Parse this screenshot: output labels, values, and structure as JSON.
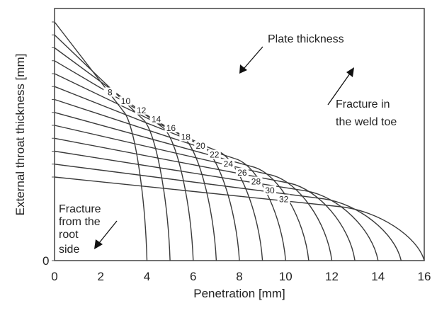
{
  "chart_data": {
    "type": "line",
    "title": "",
    "xlabel": "Penetration [mm]",
    "ylabel": "External throat thickness [mm]",
    "xlim": [
      0,
      16
    ],
    "x_ticks": [
      "0",
      "2",
      "4",
      "6",
      "8",
      "10",
      "12",
      "14",
      "16"
    ],
    "y_ticks": [
      "0"
    ],
    "grid": false,
    "series": [
      {
        "name": "8",
        "knee_x": 3.0,
        "x_intercept": 4.0
      },
      {
        "name": "10",
        "knee_x": 3.85,
        "x_intercept": 5.0
      },
      {
        "name": "12",
        "knee_x": 4.7,
        "x_intercept": 6.0
      },
      {
        "name": "14",
        "knee_x": 5.5,
        "x_intercept": 7.0
      },
      {
        "name": "16",
        "knee_x": 6.3,
        "x_intercept": 8.0
      },
      {
        "name": "18",
        "knee_x": 7.1,
        "x_intercept": 9.0
      },
      {
        "name": "20",
        "knee_x": 7.9,
        "x_intercept": 10.0
      },
      {
        "name": "22",
        "knee_x": 8.65,
        "x_intercept": 11.0
      },
      {
        "name": "24",
        "knee_x": 9.4,
        "x_intercept": 12.0
      },
      {
        "name": "26",
        "knee_x": 10.15,
        "x_intercept": 13.0
      },
      {
        "name": "28",
        "knee_x": 10.9,
        "x_intercept": 14.0
      },
      {
        "name": "30",
        "knee_x": 11.65,
        "x_intercept": 15.0
      },
      {
        "name": "32",
        "knee_x": 12.4,
        "x_intercept": 16.0
      }
    ],
    "annotations": {
      "plate_thickness": "Plate thickness",
      "weld_toe_line1": "Fracture in",
      "weld_toe_line2": "the weld toe",
      "root_line1": "Fracture",
      "root_line2": "from the",
      "root_line3": "root",
      "root_line4": "side"
    }
  }
}
